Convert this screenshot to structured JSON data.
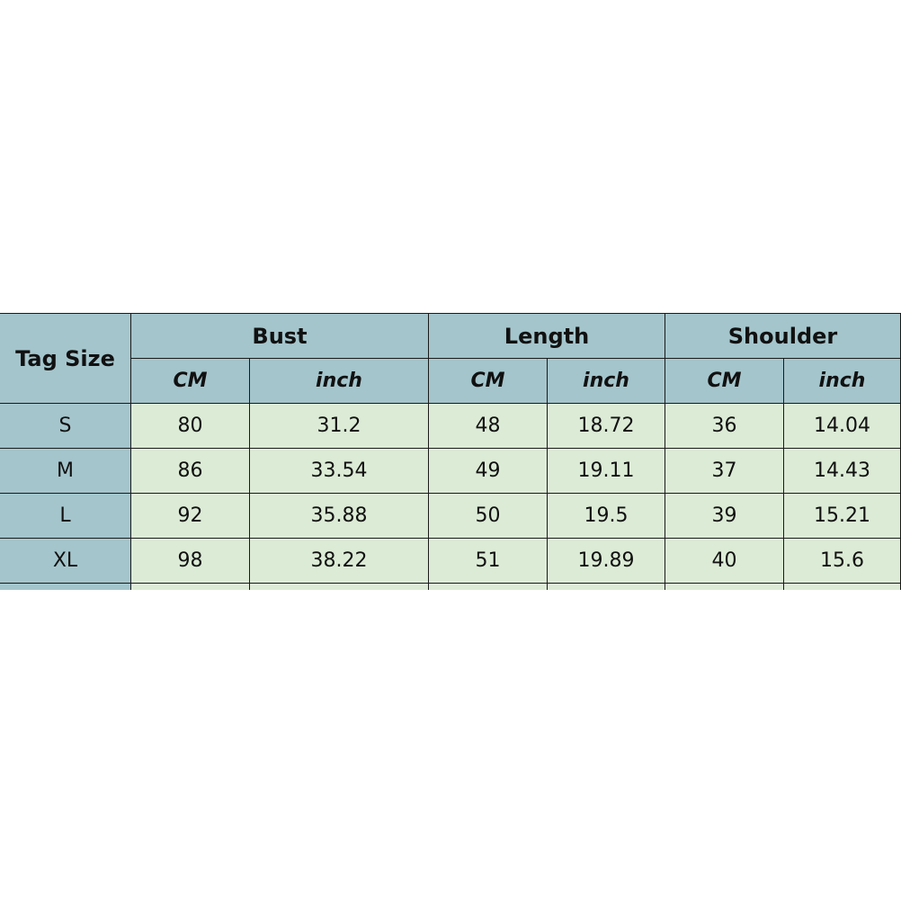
{
  "table": {
    "corner_header": "Tag Size",
    "groups": [
      "Bust",
      "Length",
      "Shoulder"
    ],
    "units": [
      "CM",
      "inch",
      "CM",
      "inch",
      "CM",
      "inch"
    ],
    "rows": [
      {
        "size": "S",
        "values": [
          "80",
          "31.2",
          "48",
          "18.72",
          "36",
          "14.04"
        ]
      },
      {
        "size": "M",
        "values": [
          "86",
          "33.54",
          "49",
          "19.11",
          "37",
          "14.43"
        ]
      },
      {
        "size": "L",
        "values": [
          "92",
          "35.88",
          "50",
          "19.5",
          "39",
          "15.21"
        ]
      },
      {
        "size": "XL",
        "values": [
          "98",
          "38.22",
          "51",
          "19.89",
          "40",
          "15.6"
        ]
      }
    ],
    "colors": {
      "header": "#a4c5cc",
      "data": "#dcebd6",
      "border": "#1a1a1a"
    }
  }
}
